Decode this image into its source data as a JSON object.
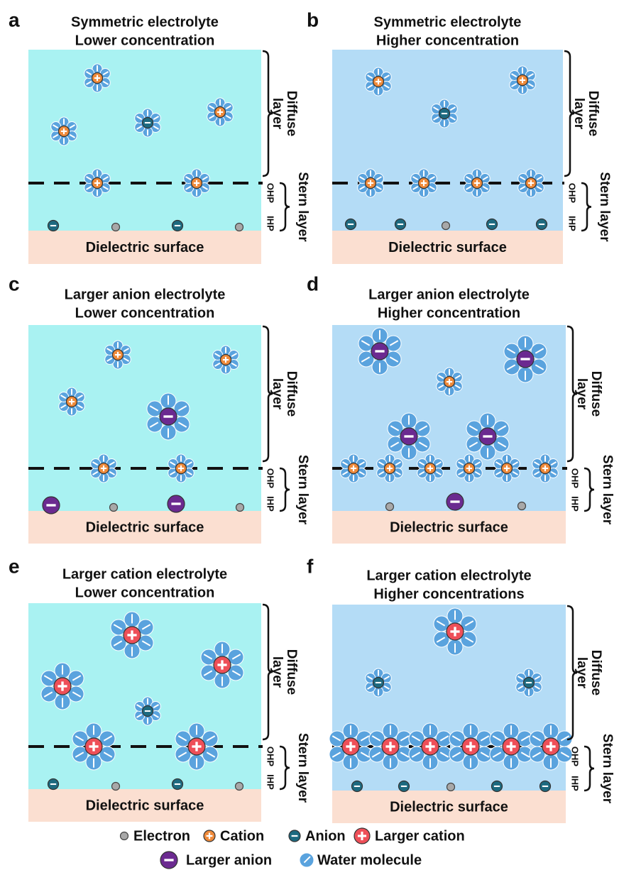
{
  "panels": [
    {
      "letter": "a",
      "title": [
        "Symmetric electrolyte",
        "Lower concentration"
      ]
    },
    {
      "letter": "b",
      "title": [
        "Symmetric electrolyte",
        "Higher concentration"
      ]
    },
    {
      "letter": "c",
      "title": [
        "Larger anion electrolyte",
        "Lower concentration"
      ]
    },
    {
      "letter": "d",
      "title": [
        "Larger anion electrolyte",
        "Higher concentration"
      ]
    },
    {
      "letter": "e",
      "title": [
        "Larger cation electrolyte",
        "Lower concentration"
      ]
    },
    {
      "letter": "f",
      "title": [
        "Larger cation electrolyte",
        "Higher concentrations"
      ]
    }
  ],
  "labels": {
    "diffuse": [
      "Diffuse",
      "layer"
    ],
    "stern": "Stern layer",
    "ohp": "OHP",
    "ihp": "IHP",
    "surface": "Dielectric surface"
  },
  "legend": [
    "Electron",
    "Cation",
    "Anion",
    "Larger cation",
    "Larger anion",
    "Water molecule"
  ]
}
